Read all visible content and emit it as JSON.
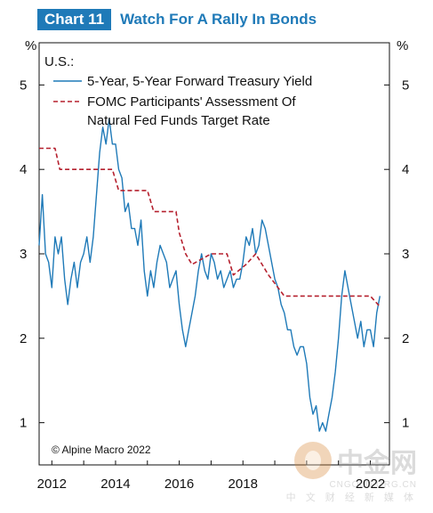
{
  "header": {
    "chart_number": "Chart 11",
    "title": "Watch For A Rally In Bonds"
  },
  "chart_data": {
    "type": "line",
    "title": "Watch For A Rally In Bonds",
    "region_label": "U.S.:",
    "y_unit_left": "%",
    "y_unit_right": "%",
    "ylim": [
      0.5,
      5.5
    ],
    "yticks": [
      1,
      2,
      3,
      4,
      5
    ],
    "xlim": [
      2011.6,
      2022.6
    ],
    "xticks": [
      {
        "value": 2012,
        "label": "2012"
      },
      {
        "value": 2014,
        "label": "2014"
      },
      {
        "value": 2016,
        "label": "2016"
      },
      {
        "value": 2018,
        "label": "2018"
      },
      {
        "value": 2022,
        "label": "2022"
      }
    ],
    "grid": false,
    "legend_placement": "top-left",
    "series": [
      {
        "name": "5-Year, 5-Year Forward Treasury Yield",
        "style": "solid",
        "color": "#1f7ab8",
        "points": [
          [
            2011.6,
            3.1
          ],
          [
            2011.7,
            3.7
          ],
          [
            2011.8,
            3.0
          ],
          [
            2011.9,
            2.9
          ],
          [
            2012.0,
            2.6
          ],
          [
            2012.1,
            3.2
          ],
          [
            2012.2,
            3.0
          ],
          [
            2012.3,
            3.2
          ],
          [
            2012.4,
            2.7
          ],
          [
            2012.5,
            2.4
          ],
          [
            2012.6,
            2.7
          ],
          [
            2012.7,
            2.9
          ],
          [
            2012.8,
            2.6
          ],
          [
            2012.9,
            2.9
          ],
          [
            2013.0,
            3.0
          ],
          [
            2013.1,
            3.2
          ],
          [
            2013.2,
            2.9
          ],
          [
            2013.3,
            3.2
          ],
          [
            2013.4,
            3.7
          ],
          [
            2013.5,
            4.2
          ],
          [
            2013.6,
            4.5
          ],
          [
            2013.7,
            4.3
          ],
          [
            2013.8,
            4.6
          ],
          [
            2013.9,
            4.3
          ],
          [
            2014.0,
            4.3
          ],
          [
            2014.1,
            4.0
          ],
          [
            2014.2,
            3.9
          ],
          [
            2014.3,
            3.5
          ],
          [
            2014.4,
            3.6
          ],
          [
            2014.5,
            3.3
          ],
          [
            2014.6,
            3.3
          ],
          [
            2014.7,
            3.1
          ],
          [
            2014.8,
            3.4
          ],
          [
            2014.9,
            2.8
          ],
          [
            2015.0,
            2.5
          ],
          [
            2015.1,
            2.8
          ],
          [
            2015.2,
            2.6
          ],
          [
            2015.3,
            2.9
          ],
          [
            2015.4,
            3.1
          ],
          [
            2015.5,
            3.0
          ],
          [
            2015.6,
            2.9
          ],
          [
            2015.7,
            2.6
          ],
          [
            2015.8,
            2.7
          ],
          [
            2015.9,
            2.8
          ],
          [
            2016.0,
            2.4
          ],
          [
            2016.1,
            2.1
          ],
          [
            2016.2,
            1.9
          ],
          [
            2016.3,
            2.1
          ],
          [
            2016.4,
            2.3
          ],
          [
            2016.5,
            2.5
          ],
          [
            2016.6,
            2.8
          ],
          [
            2016.7,
            3.0
          ],
          [
            2016.8,
            2.8
          ],
          [
            2016.9,
            2.7
          ],
          [
            2017.0,
            3.0
          ],
          [
            2017.1,
            2.9
          ],
          [
            2017.2,
            2.7
          ],
          [
            2017.3,
            2.8
          ],
          [
            2017.4,
            2.6
          ],
          [
            2017.5,
            2.7
          ],
          [
            2017.6,
            2.8
          ],
          [
            2017.7,
            2.6
          ],
          [
            2017.8,
            2.7
          ],
          [
            2017.9,
            2.7
          ],
          [
            2018.0,
            2.9
          ],
          [
            2018.1,
            3.2
          ],
          [
            2018.2,
            3.1
          ],
          [
            2018.3,
            3.3
          ],
          [
            2018.4,
            3.0
          ],
          [
            2018.5,
            3.1
          ],
          [
            2018.6,
            3.4
          ],
          [
            2018.7,
            3.3
          ],
          [
            2018.8,
            3.1
          ],
          [
            2018.9,
            2.9
          ],
          [
            2019.0,
            2.7
          ],
          [
            2019.1,
            2.6
          ],
          [
            2019.2,
            2.4
          ],
          [
            2019.3,
            2.3
          ],
          [
            2019.4,
            2.1
          ],
          [
            2019.5,
            2.1
          ],
          [
            2019.6,
            1.9
          ],
          [
            2019.7,
            1.8
          ],
          [
            2019.8,
            1.9
          ],
          [
            2019.9,
            1.9
          ],
          [
            2020.0,
            1.7
          ],
          [
            2020.1,
            1.3
          ],
          [
            2020.2,
            1.1
          ],
          [
            2020.3,
            1.2
          ],
          [
            2020.4,
            0.9
          ],
          [
            2020.5,
            1.0
          ],
          [
            2020.6,
            0.9
          ],
          [
            2020.7,
            1.1
          ],
          [
            2020.8,
            1.3
          ],
          [
            2020.9,
            1.6
          ],
          [
            2021.0,
            2.0
          ],
          [
            2021.1,
            2.5
          ],
          [
            2021.2,
            2.8
          ],
          [
            2021.3,
            2.6
          ],
          [
            2021.4,
            2.4
          ],
          [
            2021.5,
            2.2
          ],
          [
            2021.6,
            2.0
          ],
          [
            2021.7,
            2.2
          ],
          [
            2021.8,
            1.9
          ],
          [
            2021.9,
            2.1
          ],
          [
            2022.0,
            2.1
          ],
          [
            2022.1,
            1.9
          ],
          [
            2022.2,
            2.3
          ],
          [
            2022.3,
            2.5
          ]
        ]
      },
      {
        "name": "FOMC Participants' Assessment Of Natural Fed Funds Target Rate",
        "style": "dashed",
        "color": "#b5202e",
        "points": [
          [
            2011.6,
            4.25
          ],
          [
            2012.1,
            4.25
          ],
          [
            2012.25,
            4.0
          ],
          [
            2013.9,
            4.0
          ],
          [
            2014.1,
            3.75
          ],
          [
            2015.0,
            3.75
          ],
          [
            2015.2,
            3.5
          ],
          [
            2015.9,
            3.5
          ],
          [
            2016.0,
            3.25
          ],
          [
            2016.2,
            3.0
          ],
          [
            2016.4,
            2.875
          ],
          [
            2017.0,
            3.0
          ],
          [
            2017.5,
            3.0
          ],
          [
            2017.7,
            2.75
          ],
          [
            2018.1,
            2.875
          ],
          [
            2018.4,
            3.0
          ],
          [
            2018.8,
            2.75
          ],
          [
            2019.3,
            2.5
          ],
          [
            2022.0,
            2.5
          ],
          [
            2022.3,
            2.375
          ]
        ]
      }
    ],
    "annotations": [
      "© Alpine Macro 2022"
    ]
  },
  "watermark": {
    "brand": "中金网",
    "domain": "CNGOLD.ORG.CN",
    "tagline": "中 文 财 经 新 媒 体"
  },
  "colors": {
    "accent": "#1f7ab8",
    "dashed_series": "#b5202e"
  }
}
